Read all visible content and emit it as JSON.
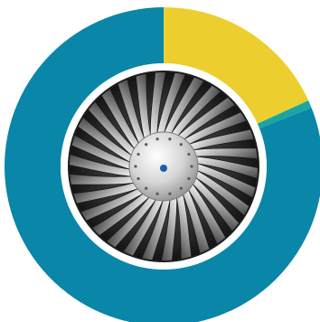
{
  "chart_data": {
    "type": "pie",
    "variant": "donut",
    "legend": "none",
    "center_image": "jet-engine-fan-photo",
    "slices": [
      {
        "value": 18.2,
        "color": "#EDCE2F"
      },
      {
        "value": 0.8,
        "color": "#1AA6A0"
      },
      {
        "value": 81.0,
        "color": "#0A86A8"
      }
    ]
  }
}
